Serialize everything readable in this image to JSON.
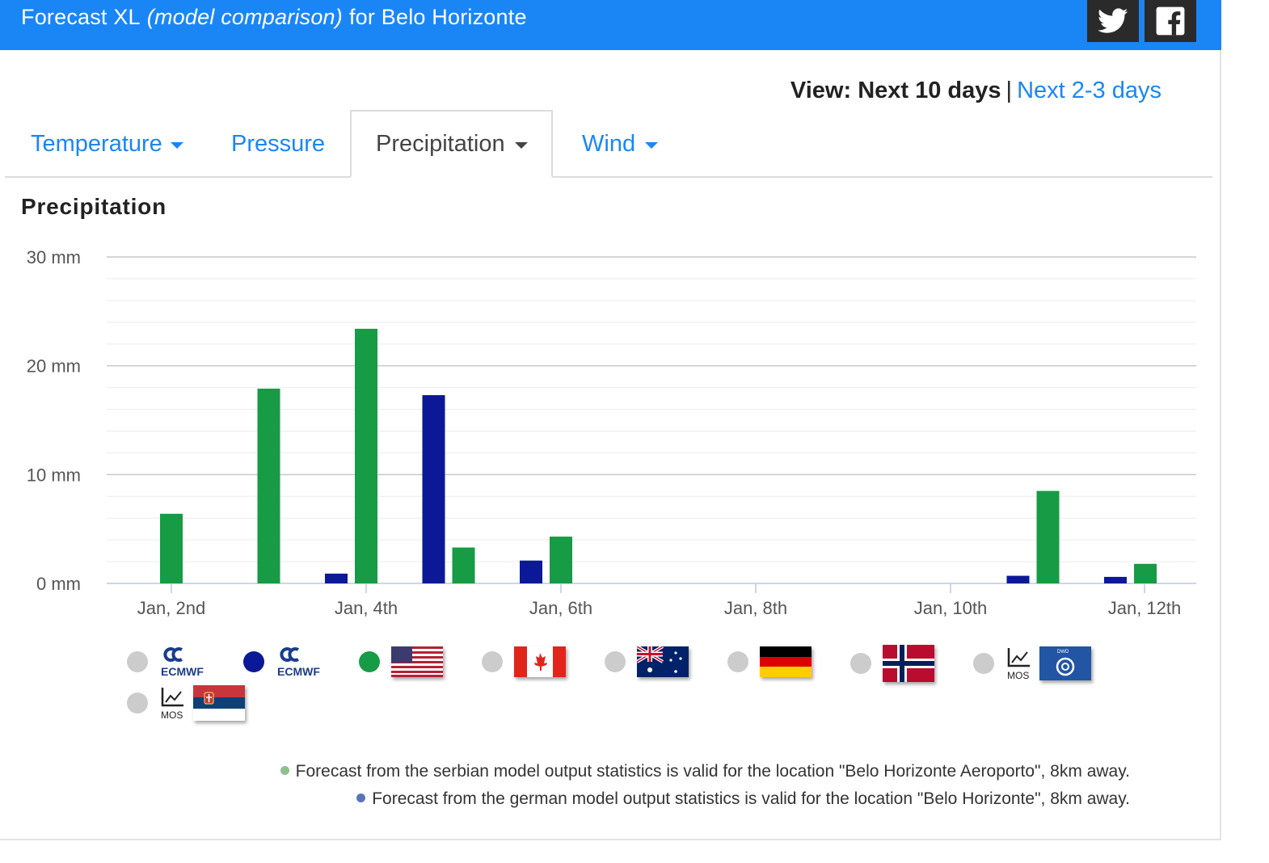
{
  "header": {
    "title_prefix": "Forecast XL",
    "title_italic": "(model comparison)",
    "title_suffix": "for Belo Horizonte"
  },
  "view": {
    "label": "View: Next 10 days",
    "separator": "|",
    "alt_link": "Next 2-3 days"
  },
  "tabs": [
    {
      "label": "Temperature",
      "has_caret": true,
      "active": false
    },
    {
      "label": "Pressure",
      "has_caret": false,
      "active": false
    },
    {
      "label": "Precipitation",
      "has_caret": true,
      "active": true
    },
    {
      "label": "Wind",
      "has_caret": true,
      "active": false
    }
  ],
  "section_title": "Precipitation",
  "chart_data": {
    "type": "bar",
    "title": "Precipitation",
    "ylim": [
      0,
      30
    ],
    "y_ticks": [
      "0 mm",
      "10 mm",
      "20 mm",
      "30 mm"
    ],
    "x_ticks": [
      "Jan, 2nd",
      "Jan, 4th",
      "Jan, 6th",
      "Jan, 8th",
      "Jan, 10th",
      "Jan, 12th"
    ],
    "grid": true,
    "series": [
      {
        "color": "#0b1897",
        "points": [
          {
            "x": "Jan 4, 00:00",
            "y": 0.9
          },
          {
            "x": "Jan 5, 00:00",
            "y": 17.3
          },
          {
            "x": "Jan 6, 00:00",
            "y": 2.1
          },
          {
            "x": "Jan 11, 00:00",
            "y": 0.7
          },
          {
            "x": "Jan 12, 00:00",
            "y": 0.6
          }
        ]
      },
      {
        "color": "#179b45",
        "points": [
          {
            "x": "Jan 2, 00:00",
            "y": 6.4
          },
          {
            "x": "Jan 3, 00:00",
            "y": 17.9
          },
          {
            "x": "Jan 4, 00:00",
            "y": 23.4
          },
          {
            "x": "Jan 5, 00:00",
            "y": 3.3
          },
          {
            "x": "Jan 6, 00:00",
            "y": 4.3
          },
          {
            "x": "Jan 11, 00:00",
            "y": 8.5
          },
          {
            "x": "Jan 12, 00:00",
            "y": 1.8
          }
        ]
      }
    ]
  },
  "legend": [
    {
      "icon": "ecmwf-logo-icon",
      "label": "ECMWF",
      "dot_color": "#cccccc"
    },
    {
      "icon": "ecmwf-logo-icon",
      "label": "ECMWF",
      "dot_color": "#0b1897"
    },
    {
      "icon": "usa-flag-icon",
      "dot_color": "#179b45"
    },
    {
      "icon": "canada-flag-icon",
      "dot_color": "#cccccc"
    },
    {
      "icon": "australia-flag-icon",
      "dot_color": "#cccccc"
    },
    {
      "icon": "germany-flag-icon",
      "dot_color": "#cccccc"
    },
    {
      "icon": "norway-flag-icon",
      "dot_color": "#cccccc"
    },
    {
      "icon": "mos-dwd-icon",
      "label": "MOS",
      "badge": "DWD",
      "dot_color": "#cccccc"
    },
    {
      "icon": "mos-serbia-icon",
      "label": "MOS",
      "dot_color": "#cccccc"
    }
  ],
  "notes": [
    {
      "text": "Forecast from the serbian model output statistics is valid for the location \"Belo Horizonte Aeroporto\", 8km away.",
      "bullet_color": "#8fbf8f"
    },
    {
      "text": "Forecast from the german model output statistics is valid for the location \"Belo Horizonte\", 8km away.",
      "bullet_color": "#5b74b8"
    }
  ],
  "colors": {
    "accent": "#1a86f5",
    "header_bg": "#1a86f5",
    "social_bg": "#2a2a2a",
    "bar_navy": "#0b1897",
    "bar_green": "#179b45"
  }
}
